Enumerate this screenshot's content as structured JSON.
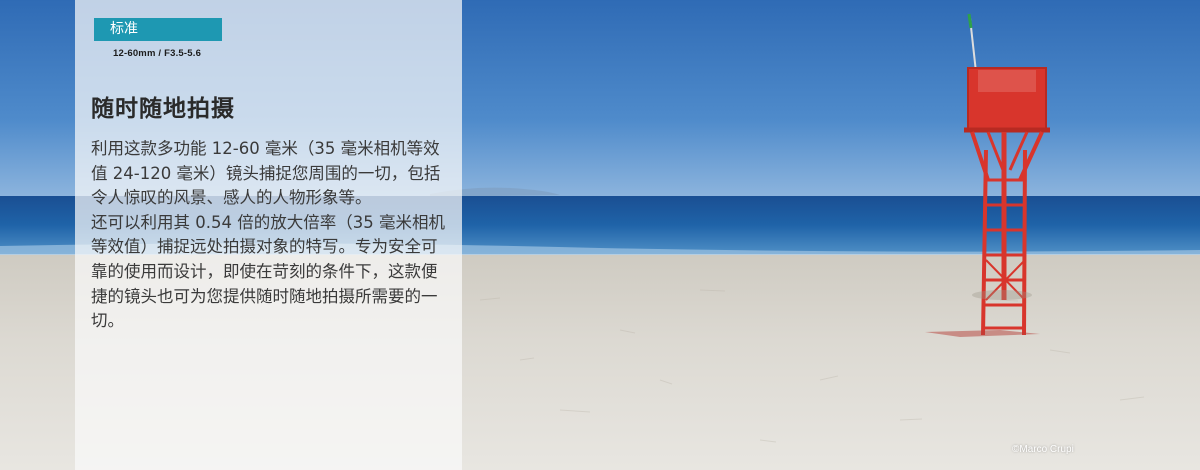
{
  "panel": {
    "category_label": "标准",
    "lens_spec": "12-60mm / F3.5-5.6",
    "headline": "随时随地拍摄",
    "paragraphs": [
      "利用这款多功能 12-60 毫米（35 毫米相机等效值 24-120 毫米）镜头捕捉您周围的一切，包括令人惊叹的风景、感人的人物形象等。",
      "还可以利用其 0.54 倍的放大倍率（35 毫米相机等效值）捕捉远处拍摄对象的特写。专为安全可靠的使用而设计，即使在苛刻的条件下，这款便捷的镜头也可为您提供随时随地拍摄所需要的一切。"
    ]
  },
  "photo": {
    "credit": "©Marco Crupi",
    "subject_icon": "lifeguard-tower-icon"
  },
  "colors": {
    "accent": "#1e98b2",
    "tower_red": "#d8352c",
    "sky": "#3f7cc0",
    "sea": "#1d5fa3",
    "sand": "#d9d6cf"
  }
}
